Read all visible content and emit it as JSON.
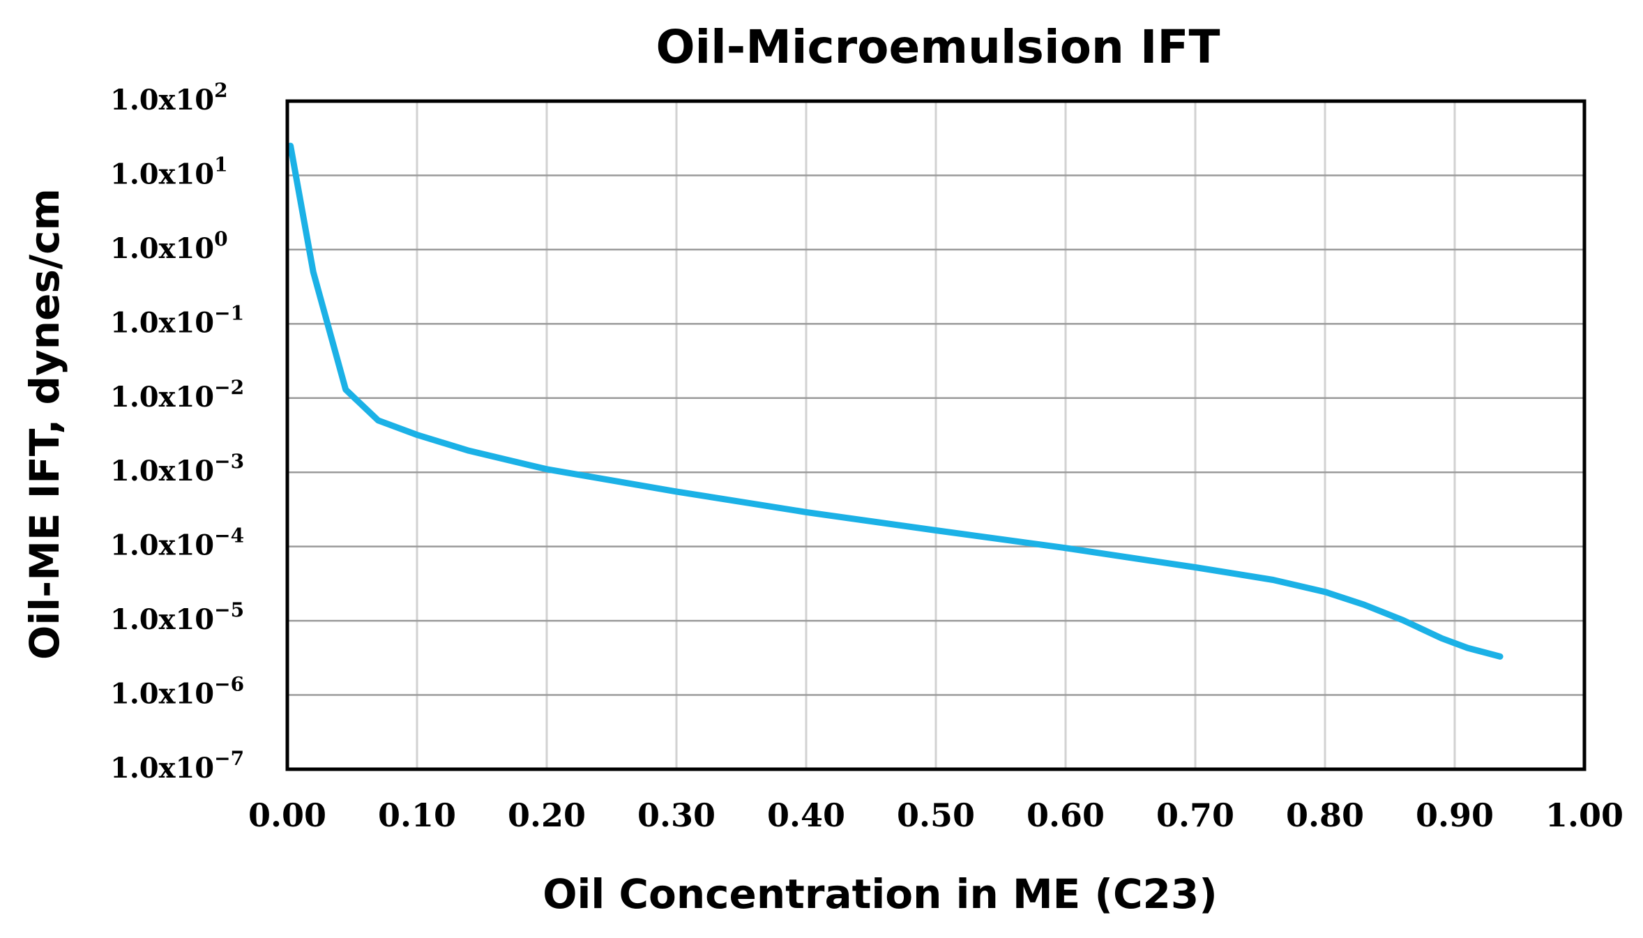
{
  "chart_data": {
    "type": "line",
    "title": "Oil-Microemulsion IFT",
    "xlabel": "Oil Concentration in ME (C23)",
    "ylabel": "Oil-ME IFT, dynes/cm",
    "x_scale": "linear",
    "y_scale": "log",
    "xlim": [
      0,
      1
    ],
    "ylim": [
      1e-07,
      100
    ],
    "grid": true,
    "x_tick_labels": [
      "0.00",
      "0.10",
      "0.20",
      "0.30",
      "0.40",
      "0.50",
      "0.60",
      "0.70",
      "0.80",
      "0.90",
      "1.00"
    ],
    "y_ticks": [
      {
        "mantissa": "1.0x10",
        "exponent": "2",
        "value": 100
      },
      {
        "mantissa": "1.0x10",
        "exponent": "1",
        "value": 10
      },
      {
        "mantissa": "1.0x10",
        "exponent": "0",
        "value": 1
      },
      {
        "mantissa": "1.0x10",
        "exponent": "−1",
        "value": 0.1
      },
      {
        "mantissa": "1.0x10",
        "exponent": "−2",
        "value": 0.01
      },
      {
        "mantissa": "1.0x10",
        "exponent": "−3",
        "value": 0.001
      },
      {
        "mantissa": "1.0x10",
        "exponent": "−4",
        "value": 0.0001
      },
      {
        "mantissa": "1.0x10",
        "exponent": "−5",
        "value": 1e-05
      },
      {
        "mantissa": "1.0x10",
        "exponent": "−6",
        "value": 1e-06
      },
      {
        "mantissa": "1.0x10",
        "exponent": "−7",
        "value": 1e-07
      }
    ],
    "series": [
      {
        "name": "Oil-ME IFT",
        "color": "#1BB1E6",
        "x": [
          0.0025,
          0.02,
          0.045,
          0.07,
          0.1,
          0.14,
          0.2,
          0.3,
          0.4,
          0.5,
          0.6,
          0.7,
          0.76,
          0.8,
          0.83,
          0.86,
          0.89,
          0.91,
          0.935
        ],
        "y": [
          25,
          0.5,
          0.013,
          0.005,
          0.0032,
          0.00195,
          0.0011,
          0.00055,
          0.00029,
          0.000165,
          9.55e-05,
          5.25e-05,
          3.55e-05,
          2.45e-05,
          1.65e-05,
          1.02e-05,
          5.8e-06,
          4.3e-06,
          3.3e-06
        ]
      }
    ]
  }
}
